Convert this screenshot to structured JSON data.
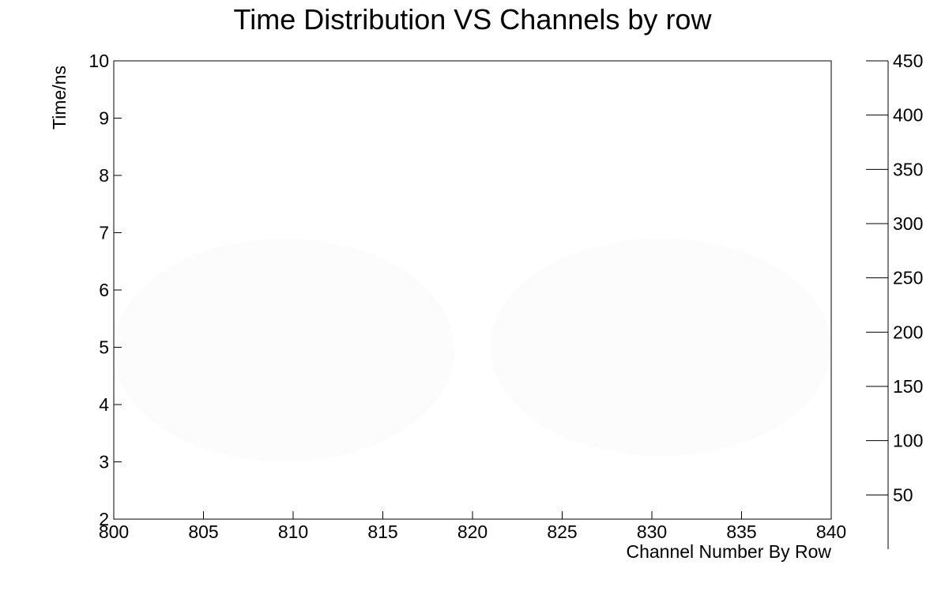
{
  "chart_data": {
    "type": "heatmap",
    "title": "Time Distribution VS Channels by row",
    "xlabel": "Channel Number By Row",
    "ylabel": "Time/ns",
    "xlim": [
      800,
      840
    ],
    "ylim": [
      2,
      10
    ],
    "x_ticks": [
      "800",
      "805",
      "810",
      "815",
      "820",
      "825",
      "830",
      "835",
      "840"
    ],
    "y_ticks": [
      "2",
      "3",
      "4",
      "5",
      "6",
      "7",
      "8",
      "9",
      "10"
    ],
    "colorbar": {
      "range": [
        0,
        450
      ],
      "ticks": [
        "50",
        "100",
        "150",
        "200",
        "250",
        "300",
        "350",
        "400",
        "450"
      ]
    },
    "regions": [
      {
        "x0": 800,
        "x1": 819,
        "y0": 3.0,
        "y1": 6.9,
        "level": 0.01
      },
      {
        "x0": 821,
        "x1": 840,
        "y0": 3.1,
        "y1": 6.9,
        "level": 0.01
      }
    ],
    "colors": {
      "frame": "#000000",
      "background": "#ffffff",
      "fill": "#fcfcfc"
    }
  }
}
